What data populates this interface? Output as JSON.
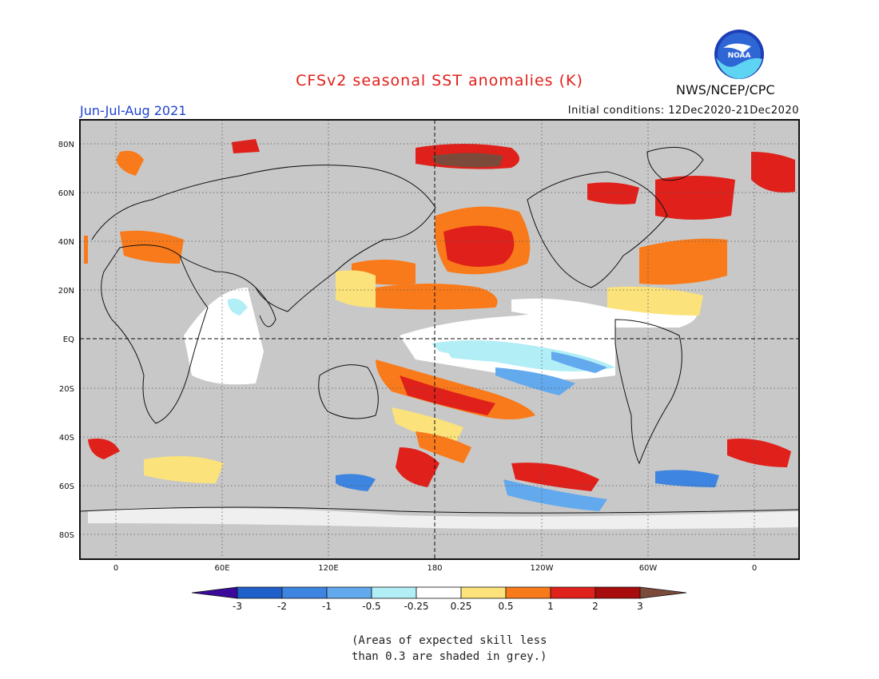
{
  "header": {
    "title": "CFSv2 seasonal SST anomalies (K)",
    "season": "Jun-Jul-Aug 2021",
    "initial_conditions": "Initial conditions: 12Dec2020-21Dec2020",
    "agency": "NWS/NCEP/CPC",
    "logo_text": "NOAA"
  },
  "map": {
    "lat_labels": [
      "80N",
      "60N",
      "40N",
      "20N",
      "EQ",
      "20S",
      "40S",
      "60S",
      "80S"
    ],
    "lon_labels": [
      "0",
      "60E",
      "120E",
      "180",
      "120W",
      "60W",
      "0"
    ],
    "land_color": "#c8c8c8"
  },
  "colorbar": {
    "tick_labels": [
      "-3",
      "-2",
      "-1",
      "-0.5",
      "-0.25",
      "0.25",
      "0.5",
      "1",
      "2",
      "3"
    ],
    "colors": [
      "#3a0a9a",
      "#1f5fc9",
      "#3d85e0",
      "#62a9ee",
      "#b2eef5",
      "#ffffff",
      "#fbe27a",
      "#f97a1a",
      "#e0201a",
      "#a80c0c",
      "#7c4a3a"
    ]
  },
  "note": {
    "line1": "(Areas of expected skill less",
    "line2": "than 0.3 are shaded in grey.)"
  }
}
